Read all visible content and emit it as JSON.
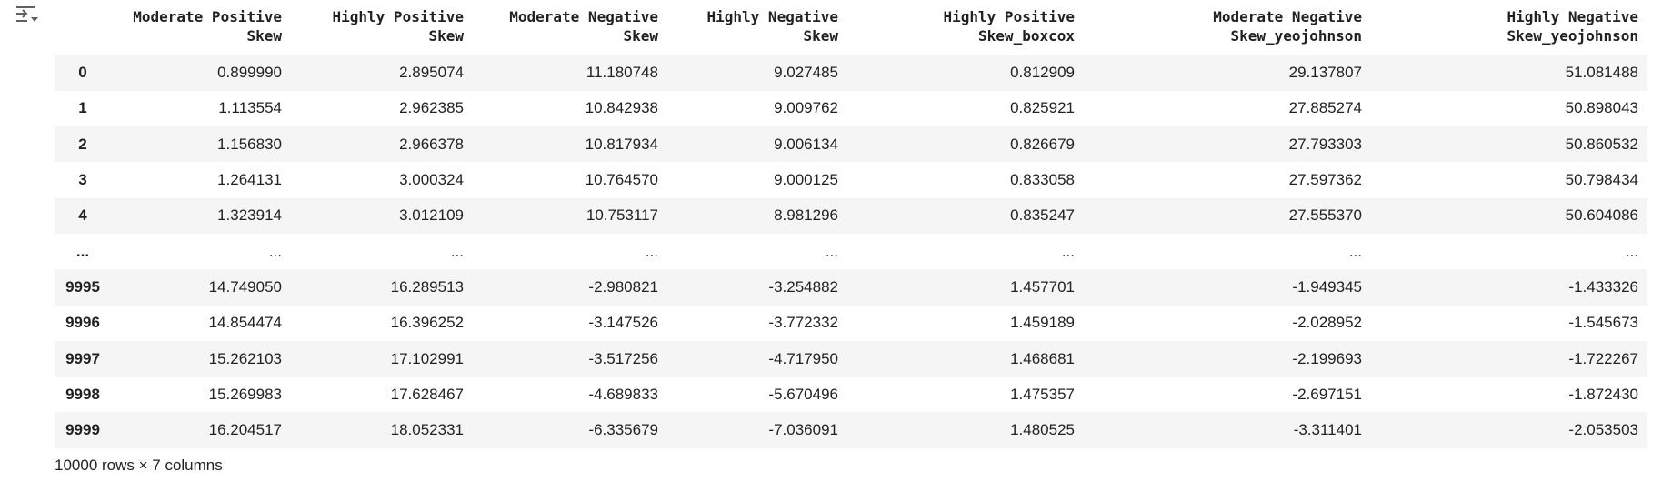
{
  "columns": [
    [
      "Moderate Positive",
      "Skew"
    ],
    [
      "Highly Positive",
      "Skew"
    ],
    [
      "Moderate Negative",
      "Skew"
    ],
    [
      "Highly Negative",
      "Skew"
    ],
    [
      "Highly Positive",
      "Skew_boxcox"
    ],
    [
      "Moderate Negative",
      "Skew_yeojohnson"
    ],
    [
      "Highly Negative",
      "Skew_yeojohnson"
    ]
  ],
  "rows": [
    {
      "index": "0",
      "values": [
        "0.899990",
        "2.895074",
        "11.180748",
        "9.027485",
        "0.812909",
        "29.137807",
        "51.081488"
      ]
    },
    {
      "index": "1",
      "values": [
        "1.113554",
        "2.962385",
        "10.842938",
        "9.009762",
        "0.825921",
        "27.885274",
        "50.898043"
      ]
    },
    {
      "index": "2",
      "values": [
        "1.156830",
        "2.966378",
        "10.817934",
        "9.006134",
        "0.826679",
        "27.793303",
        "50.860532"
      ]
    },
    {
      "index": "3",
      "values": [
        "1.264131",
        "3.000324",
        "10.764570",
        "9.000125",
        "0.833058",
        "27.597362",
        "50.798434"
      ]
    },
    {
      "index": "4",
      "values": [
        "1.323914",
        "3.012109",
        "10.753117",
        "8.981296",
        "0.835247",
        "27.555370",
        "50.604086"
      ]
    },
    {
      "index": "...",
      "values": [
        "...",
        "...",
        "...",
        "...",
        "...",
        "...",
        "..."
      ]
    },
    {
      "index": "9995",
      "values": [
        "14.749050",
        "16.289513",
        "-2.980821",
        "-3.254882",
        "1.457701",
        "-1.949345",
        "-1.433326"
      ]
    },
    {
      "index": "9996",
      "values": [
        "14.854474",
        "16.396252",
        "-3.147526",
        "-3.772332",
        "1.459189",
        "-2.028952",
        "-1.545673"
      ]
    },
    {
      "index": "9997",
      "values": [
        "15.262103",
        "17.102991",
        "-3.517256",
        "-4.717950",
        "1.468681",
        "-2.199693",
        "-1.722267"
      ]
    },
    {
      "index": "9998",
      "values": [
        "15.269983",
        "17.628467",
        "-4.689833",
        "-5.670496",
        "1.475357",
        "-2.697151",
        "-1.872430"
      ]
    },
    {
      "index": "9999",
      "values": [
        "16.204517",
        "18.052331",
        "-6.335679",
        "-7.036091",
        "1.480525",
        "-3.311401",
        "-2.053503"
      ]
    }
  ],
  "shape_text": "10000 rows × 7 columns",
  "icons": {
    "output_toggle": "output-settings-icon"
  },
  "colors": {
    "row_stripe": "#f5f5f5",
    "header_border": "#d9d9d9",
    "text": "#212121",
    "icon": "#616161"
  }
}
